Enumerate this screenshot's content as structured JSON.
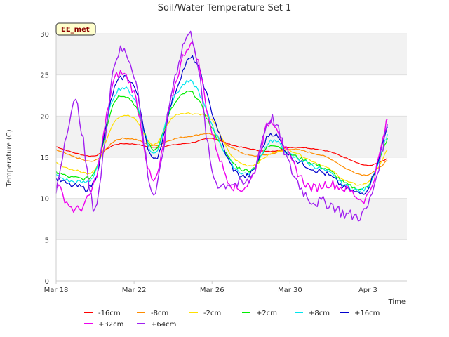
{
  "chart_data": {
    "type": "line",
    "title": "Soil/Water Temperature Set 1",
    "xlabel": "Time",
    "ylabel": "Temperature (C)",
    "badge": "EE_met",
    "xlim": [
      "2022-03-18",
      "2022-04-05"
    ],
    "ylim": [
      0,
      30
    ],
    "yticks": [
      0,
      5,
      10,
      15,
      20,
      25,
      30
    ],
    "xticks": [
      {
        "date": "2022-03-18",
        "label": "Mar 18"
      },
      {
        "date": "2022-03-22",
        "label": "Mar 22"
      },
      {
        "date": "2022-03-26",
        "label": "Mar 26"
      },
      {
        "date": "2022-03-30",
        "label": "Mar 30"
      },
      {
        "date": "2022-04-03",
        "label": "Apr 3"
      }
    ],
    "bands": [
      [
        5,
        10
      ],
      [
        15,
        20
      ],
      [
        25,
        30
      ]
    ],
    "legend_position": "bottom",
    "x": [
      "2022-03-18",
      "2022-03-19",
      "2022-03-20",
      "2022-03-21",
      "2022-03-22",
      "2022-03-23",
      "2022-03-24",
      "2022-03-25",
      "2022-03-26",
      "2022-03-27",
      "2022-03-28",
      "2022-03-29",
      "2022-03-30",
      "2022-03-31",
      "2022-04-01",
      "2022-04-02",
      "2022-04-03",
      "2022-04-04"
    ],
    "series": [
      {
        "name": "-16cm",
        "color": "#ff0000",
        "values": [
          16.3,
          15.5,
          15.2,
          16.5,
          16.6,
          16.2,
          16.5,
          16.8,
          17.3,
          16.5,
          16.0,
          15.7,
          16.2,
          16.1,
          15.7,
          14.8,
          14.0,
          14.8
        ]
      },
      {
        "name": "-8cm",
        "color": "#ff8c00",
        "values": [
          15.9,
          15.0,
          14.6,
          17.0,
          17.2,
          16.4,
          17.2,
          17.6,
          17.8,
          16.2,
          15.2,
          15.4,
          16.0,
          15.6,
          14.9,
          13.5,
          12.9,
          14.6
        ]
      },
      {
        "name": "-2cm",
        "color": "#ffe000",
        "values": [
          14.3,
          13.4,
          13.6,
          19.4,
          19.7,
          16.5,
          19.9,
          20.3,
          19.5,
          15.2,
          14.0,
          15.4,
          15.8,
          14.7,
          13.6,
          12.0,
          12.0,
          15.9
        ]
      },
      {
        "name": "+2cm",
        "color": "#00ee00",
        "values": [
          13.2,
          12.5,
          13.4,
          21.8,
          21.5,
          15.9,
          21.2,
          22.8,
          18.5,
          14.5,
          13.5,
          16.5,
          15.4,
          14.4,
          13.4,
          11.6,
          11.6,
          17.3
        ]
      },
      {
        "name": "+8cm",
        "color": "#00e5ee",
        "values": [
          12.8,
          12.0,
          13.2,
          22.6,
          22.2,
          15.4,
          22.0,
          24.0,
          19.0,
          14.2,
          13.2,
          17.0,
          15.3,
          14.2,
          13.1,
          11.4,
          11.5,
          17.8
        ]
      },
      {
        "name": "+16cm",
        "color": "#0000cd",
        "values": [
          12.4,
          11.5,
          12.4,
          23.4,
          23.6,
          14.6,
          22.2,
          27.0,
          20.5,
          13.9,
          13.0,
          17.9,
          15.2,
          13.8,
          12.8,
          11.1,
          11.3,
          18.7
        ]
      },
      {
        "name": "+32cm",
        "color": "#ee00ee",
        "values": [
          11.9,
          8.6,
          12.2,
          24.4,
          22.8,
          12.0,
          22.9,
          28.6,
          18.0,
          11.7,
          12.3,
          19.4,
          14.8,
          11.4,
          11.8,
          11.0,
          10.4,
          19.6
        ]
      },
      {
        "name": "+64cm",
        "color": "#a020f0",
        "values": [
          10.8,
          21.5,
          9.0,
          26.5,
          25.2,
          10.5,
          23.8,
          29.5,
          13.4,
          11.9,
          12.5,
          19.7,
          13.8,
          10.0,
          9.4,
          8.0,
          9.1,
          19.0
        ]
      }
    ]
  }
}
